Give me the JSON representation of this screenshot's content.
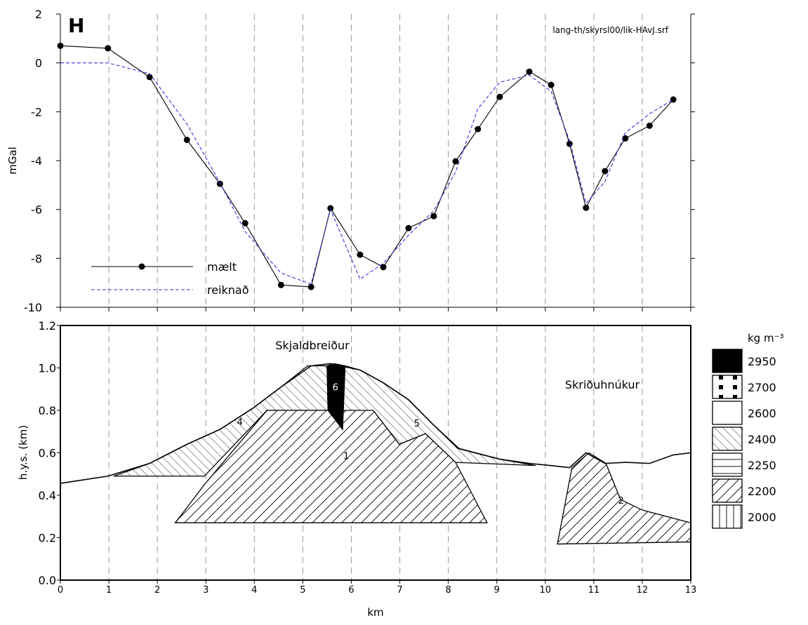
{
  "chart_data": [
    {
      "type": "line",
      "title": "H",
      "annotation": "lang-th/skyrsl00/lik-HAvJ.srf",
      "ylabel": "mGal",
      "xlim": [
        0,
        13
      ],
      "xticks": [
        0,
        1,
        2,
        3,
        4,
        5,
        6,
        7,
        8,
        9,
        10,
        11,
        12,
        13
      ],
      "ylim": [
        -10,
        2
      ],
      "yticks": [
        -10,
        -8,
        -6,
        -4,
        -2,
        0,
        2
      ],
      "grid": "x",
      "x": [
        0,
        0.98,
        1.84,
        2.61,
        3.29,
        3.81,
        4.55,
        5.17,
        5.57,
        6.18,
        6.66,
        7.18,
        7.7,
        8.15,
        8.61,
        9.06,
        9.67,
        10.12,
        10.5,
        10.84,
        11.23,
        11.65,
        12.15,
        12.64
      ],
      "series": [
        {
          "name": "mælt",
          "color": "#000000",
          "marker": "circle",
          "dash": false,
          "values": [
            0.7,
            0.6,
            -0.58,
            -3.15,
            -4.95,
            -6.56,
            -9.09,
            -9.17,
            -5.95,
            -7.85,
            -8.36,
            -6.76,
            -6.27,
            -4.03,
            -2.71,
            -1.39,
            -0.36,
            -0.9,
            -3.31,
            -5.93,
            -4.43,
            -3.09,
            -2.57,
            -1.5
          ]
        },
        {
          "name": "reiknað",
          "color": "#3333dd",
          "marker": "none",
          "dash": true,
          "values": [
            0,
            0,
            -0.44,
            -2.5,
            -4.9,
            -6.9,
            -8.6,
            -9.05,
            -6.0,
            -8.85,
            -8.2,
            -7.05,
            -6.05,
            -4.46,
            -1.88,
            -0.79,
            -0.5,
            -1.16,
            -3.17,
            -5.75,
            -4.86,
            -2.86,
            -2.08,
            -1.5
          ]
        }
      ]
    },
    {
      "type": "section",
      "xlabel": "km",
      "ylabel": "h.y.s. (km)",
      "xlim": [
        0,
        13
      ],
      "xticks": [
        0,
        1,
        2,
        3,
        4,
        5,
        6,
        7,
        8,
        9,
        10,
        11,
        12,
        13
      ],
      "ylim": [
        0,
        1.2
      ],
      "yticks": [
        {
          "value": 0,
          "label": "0.0"
        },
        0.2,
        0.4,
        0.6,
        0.8,
        {
          "value": 1,
          "label": "1.0"
        },
        1.2
      ],
      "grid": "x",
      "surface": {
        "x": [
          0,
          0.98,
          1.84,
          2.61,
          3.29,
          3.97,
          4.55,
          5.17,
          5.57,
          6.18,
          6.66,
          7.18,
          7.7,
          8.22,
          9.06,
          9.67,
          10.12,
          10.5,
          10.84,
          11.23,
          11.65,
          12.15,
          12.64,
          13
        ],
        "y": [
          0.456,
          0.49,
          0.55,
          0.64,
          0.71,
          0.81,
          0.91,
          1.01,
          1.02,
          0.99,
          0.93,
          0.85,
          0.73,
          0.62,
          0.57,
          0.55,
          0.54,
          0.53,
          0.6,
          0.55,
          0.555,
          0.55,
          0.59,
          0.6
        ]
      },
      "bodies": [
        {
          "label": "4",
          "density": 2400,
          "x": [
            1.1,
            1.84,
            2.61,
            3.29,
            3.97,
            4.55,
            5.1,
            5.5,
            5.52,
            4.26,
            2.97
          ],
          "y": [
            0.49,
            0.55,
            0.64,
            0.71,
            0.81,
            0.91,
            1.01,
            1.01,
            0.8,
            0.8,
            0.49
          ]
        },
        {
          "label": "5",
          "density": 2400,
          "x": [
            5.87,
            6.18,
            6.66,
            7.18,
            7.7,
            8.2,
            9.06,
            9.8,
            8.15,
            7.53,
            6.99,
            6.45,
            5.82
          ],
          "y": [
            1.01,
            0.99,
            0.93,
            0.85,
            0.73,
            0.62,
            0.57,
            0.54,
            0.555,
            0.69,
            0.64,
            0.8,
            0.71
          ]
        },
        {
          "label": "1",
          "density": 2200,
          "x": [
            2.37,
            2.97,
            4.26,
            5.52,
            6.45,
            6.99,
            7.53,
            8.15,
            8.8
          ],
          "y": [
            0.27,
            0.45,
            0.8,
            0.8,
            0.8,
            0.64,
            0.69,
            0.555,
            0.27
          ]
        },
        {
          "label": "6",
          "density": 2950,
          "x": [
            5.5,
            5.65,
            5.87,
            5.82,
            5.52
          ],
          "y": [
            1.01,
            1.02,
            1.01,
            0.71,
            0.8
          ]
        },
        {
          "label": "2",
          "density": 2200,
          "x": [
            10.25,
            10.55,
            10.9,
            11.25,
            11.55,
            12.0,
            13,
            13
          ],
          "y": [
            0.17,
            0.53,
            0.6,
            0.55,
            0.38,
            0.33,
            0.27,
            0.18
          ]
        }
      ],
      "annotations": [
        {
          "text": "Skjaldbreiður"
        },
        {
          "text": "Skriðuhnúkur"
        }
      ],
      "legend_title": "kg m⁻³",
      "legend": [
        {
          "density": 2950,
          "pattern": "solid"
        },
        {
          "density": 2700,
          "pattern": "dots"
        },
        {
          "density": 2600,
          "pattern": "none"
        },
        {
          "density": 2400,
          "pattern": "back"
        },
        {
          "density": 2250,
          "pattern": "horizontal"
        },
        {
          "density": 2200,
          "pattern": "hatch"
        },
        {
          "density": 2000,
          "pattern": "vertical"
        }
      ]
    }
  ]
}
